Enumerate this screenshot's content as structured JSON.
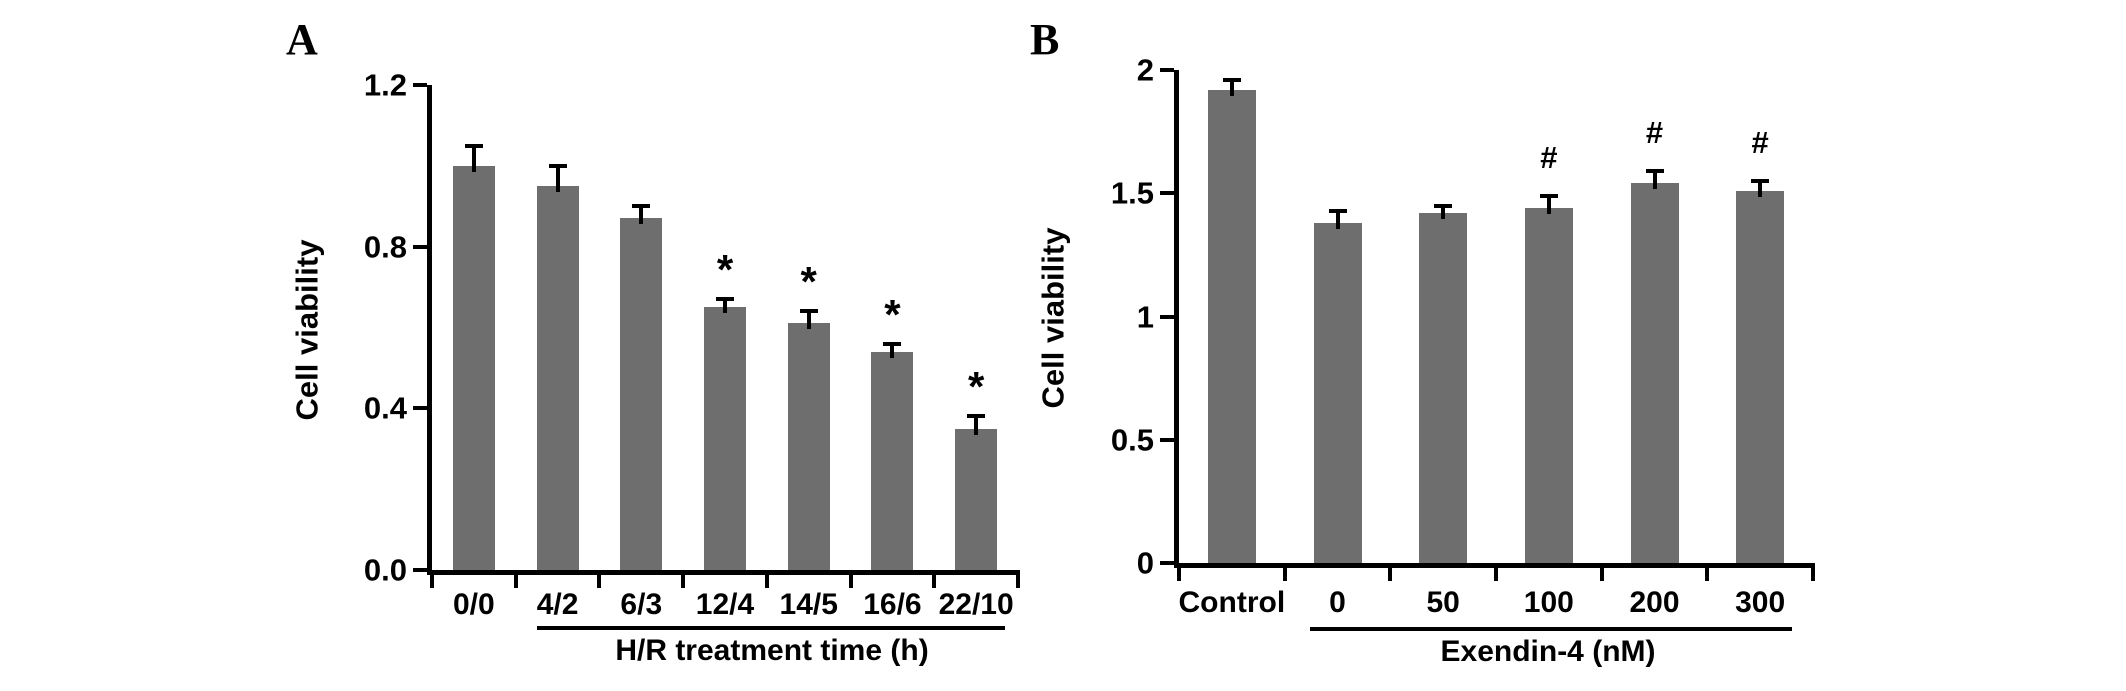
{
  "figure_title": "",
  "bar_color": "#6e6e6e",
  "axis_color": "#000000",
  "chart_data": [
    {
      "type": "bar",
      "panel_label": "A",
      "title": "",
      "ylabel": "Cell viability",
      "xlabel": "H/R treatment time (h)",
      "categories": [
        "0/0",
        "4/2",
        "6/3",
        "12/4",
        "14/5",
        "16/6",
        "22/10"
      ],
      "values": [
        1.0,
        0.95,
        0.87,
        0.65,
        0.61,
        0.54,
        0.35
      ],
      "errors": [
        0.05,
        0.05,
        0.03,
        0.02,
        0.03,
        0.02,
        0.03
      ],
      "annotations": [
        "",
        "",
        "",
        "*",
        "*",
        "*",
        "*"
      ],
      "ylim": [
        0,
        1.2
      ],
      "yticks": [
        0,
        0.4,
        0.8,
        1.2
      ],
      "ytick_labels": [
        "0.0",
        "0.4",
        "0.8",
        "1.2"
      ],
      "grid": false,
      "legend": "none",
      "group_label_applies_to": [
        "4/2",
        "6/3",
        "12/4",
        "14/5",
        "16/6",
        "22/10"
      ]
    },
    {
      "type": "bar",
      "panel_label": "B",
      "title": "",
      "ylabel": "Cell viability",
      "xlabel": "Exendin-4 (nM)",
      "categories": [
        "Control",
        "0",
        "50",
        "100",
        "200",
        "300"
      ],
      "values": [
        1.92,
        1.38,
        1.42,
        1.44,
        1.54,
        1.51
      ],
      "errors": [
        0.04,
        0.05,
        0.03,
        0.05,
        0.05,
        0.04
      ],
      "annotations": [
        "",
        "",
        "",
        "#",
        "#",
        "#"
      ],
      "ylim": [
        0,
        2
      ],
      "yticks": [
        0,
        0.5,
        1,
        1.5,
        2
      ],
      "ytick_labels": [
        "0",
        "0.5",
        "1",
        "1.5",
        "2"
      ],
      "grid": false,
      "legend": "none",
      "group_label_applies_to": [
        "0",
        "50",
        "100",
        "200",
        "300"
      ]
    }
  ]
}
